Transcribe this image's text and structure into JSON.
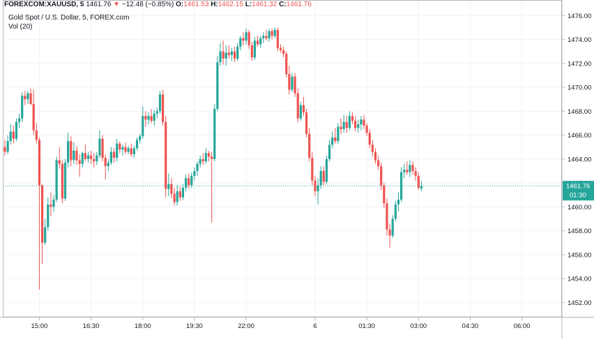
{
  "header": {
    "symbol": "FOREXCOM:XAUUSD, 5",
    "last": "1461.76",
    "change": "−12.48 (−0.85%)",
    "o_label": "O:",
    "o_value": "1461.53",
    "h_label": "H:",
    "h_value": "1462.15",
    "l_label": "L:",
    "l_value": "1461.32",
    "c_label": "C:",
    "c_value": "1461.76",
    "subtitle": "Gold Spot / U.S. Dollar, 5, FOREX.com",
    "volume_label": "Vol (20)"
  },
  "price_tag": {
    "value": "1461.76",
    "countdown": "01:30"
  },
  "colors": {
    "up": "#26a69a",
    "down": "#ef5350",
    "grid": "#f0f3fa",
    "axis": "#b2b5be",
    "tag": "#26a69a"
  },
  "chart_data": {
    "type": "candlestick",
    "ylim": [
      1450.8,
      1477.3
    ],
    "y_ticks": [
      1452,
      1454,
      1456,
      1458,
      1460,
      1462,
      1464,
      1466,
      1468,
      1470,
      1472,
      1474,
      1476
    ],
    "x_ticks": [
      {
        "label": "15:00",
        "index": 12
      },
      {
        "label": "16:30",
        "index": 30
      },
      {
        "label": "18:00",
        "index": 48
      },
      {
        "label": "19:30",
        "index": 66
      },
      {
        "label": "22:00",
        "index": 84
      },
      {
        "label": "6",
        "index": 108
      },
      {
        "label": "01:30",
        "index": 126
      },
      {
        "label": "03:00",
        "index": 144
      },
      {
        "label": "04:30",
        "index": 162
      },
      {
        "label": "06:00",
        "index": 180
      }
    ],
    "current_price": 1461.76,
    "candles": [
      {
        "o": 1465.0,
        "h": 1465.6,
        "l": 1464.3,
        "c": 1464.6
      },
      {
        "o": 1464.6,
        "h": 1466.0,
        "l": 1464.4,
        "c": 1465.5
      },
      {
        "o": 1465.5,
        "h": 1466.9,
        "l": 1465.2,
        "c": 1466.3
      },
      {
        "o": 1466.3,
        "h": 1466.8,
        "l": 1465.3,
        "c": 1465.7
      },
      {
        "o": 1465.7,
        "h": 1467.4,
        "l": 1465.5,
        "c": 1467.1
      },
      {
        "o": 1467.1,
        "h": 1467.8,
        "l": 1466.6,
        "c": 1467.4
      },
      {
        "o": 1467.4,
        "h": 1469.6,
        "l": 1467.1,
        "c": 1469.3
      },
      {
        "o": 1469.3,
        "h": 1469.7,
        "l": 1468.5,
        "c": 1469.0
      },
      {
        "o": 1469.0,
        "h": 1469.7,
        "l": 1468.6,
        "c": 1469.5
      },
      {
        "o": 1469.5,
        "h": 1469.9,
        "l": 1468.5,
        "c": 1468.6
      },
      {
        "o": 1468.6,
        "h": 1469.8,
        "l": 1466.0,
        "c": 1466.4
      },
      {
        "o": 1466.4,
        "h": 1467.0,
        "l": 1465.3,
        "c": 1465.6
      },
      {
        "o": 1465.6,
        "h": 1465.8,
        "l": 1453.1,
        "c": 1461.8
      },
      {
        "o": 1461.8,
        "h": 1461.9,
        "l": 1455.2,
        "c": 1457.0
      },
      {
        "o": 1457.0,
        "h": 1459.0,
        "l": 1456.8,
        "c": 1458.3
      },
      {
        "o": 1458.3,
        "h": 1460.8,
        "l": 1458.0,
        "c": 1460.2
      },
      {
        "o": 1460.2,
        "h": 1461.2,
        "l": 1459.2,
        "c": 1460.0
      },
      {
        "o": 1460.0,
        "h": 1461.0,
        "l": 1459.6,
        "c": 1460.6
      },
      {
        "o": 1460.6,
        "h": 1464.2,
        "l": 1460.4,
        "c": 1463.9
      },
      {
        "o": 1463.9,
        "h": 1465.0,
        "l": 1463.2,
        "c": 1463.6
      },
      {
        "o": 1463.6,
        "h": 1463.9,
        "l": 1460.3,
        "c": 1460.7
      },
      {
        "o": 1460.7,
        "h": 1464.0,
        "l": 1460.5,
        "c": 1463.7
      },
      {
        "o": 1463.7,
        "h": 1466.2,
        "l": 1463.3,
        "c": 1465.5
      },
      {
        "o": 1465.5,
        "h": 1465.9,
        "l": 1463.4,
        "c": 1463.9
      },
      {
        "o": 1463.9,
        "h": 1465.4,
        "l": 1463.6,
        "c": 1464.7
      },
      {
        "o": 1464.7,
        "h": 1465.1,
        "l": 1463.5,
        "c": 1463.9
      },
      {
        "o": 1463.9,
        "h": 1464.4,
        "l": 1462.5,
        "c": 1463.6
      },
      {
        "o": 1463.6,
        "h": 1464.6,
        "l": 1463.3,
        "c": 1464.5
      },
      {
        "o": 1464.5,
        "h": 1465.2,
        "l": 1463.8,
        "c": 1464.0
      },
      {
        "o": 1464.0,
        "h": 1464.6,
        "l": 1463.7,
        "c": 1464.3
      },
      {
        "o": 1464.3,
        "h": 1464.7,
        "l": 1463.6,
        "c": 1464.0
      },
      {
        "o": 1464.0,
        "h": 1464.5,
        "l": 1463.3,
        "c": 1463.8
      },
      {
        "o": 1463.8,
        "h": 1464.6,
        "l": 1463.5,
        "c": 1464.3
      },
      {
        "o": 1464.3,
        "h": 1466.4,
        "l": 1464.1,
        "c": 1465.7
      },
      {
        "o": 1465.7,
        "h": 1466.0,
        "l": 1463.8,
        "c": 1464.1
      },
      {
        "o": 1464.1,
        "h": 1464.4,
        "l": 1462.3,
        "c": 1463.4
      },
      {
        "o": 1463.4,
        "h": 1464.0,
        "l": 1463.0,
        "c": 1463.7
      },
      {
        "o": 1463.7,
        "h": 1465.0,
        "l": 1463.5,
        "c": 1464.6
      },
      {
        "o": 1464.6,
        "h": 1464.9,
        "l": 1463.7,
        "c": 1464.1
      },
      {
        "o": 1464.1,
        "h": 1465.7,
        "l": 1463.8,
        "c": 1465.3
      },
      {
        "o": 1465.3,
        "h": 1465.5,
        "l": 1464.5,
        "c": 1464.8
      },
      {
        "o": 1464.8,
        "h": 1465.2,
        "l": 1464.3,
        "c": 1465.0
      },
      {
        "o": 1465.0,
        "h": 1465.4,
        "l": 1464.4,
        "c": 1464.6
      },
      {
        "o": 1464.6,
        "h": 1465.1,
        "l": 1464.4,
        "c": 1464.9
      },
      {
        "o": 1464.9,
        "h": 1465.3,
        "l": 1464.2,
        "c": 1464.4
      },
      {
        "o": 1464.4,
        "h": 1465.1,
        "l": 1464.1,
        "c": 1464.9
      },
      {
        "o": 1464.9,
        "h": 1465.8,
        "l": 1464.7,
        "c": 1465.6
      },
      {
        "o": 1465.6,
        "h": 1466.1,
        "l": 1465.3,
        "c": 1465.9
      },
      {
        "o": 1465.9,
        "h": 1468.4,
        "l": 1465.7,
        "c": 1467.6
      },
      {
        "o": 1467.6,
        "h": 1468.0,
        "l": 1466.7,
        "c": 1467.3
      },
      {
        "o": 1467.3,
        "h": 1467.9,
        "l": 1466.9,
        "c": 1467.6
      },
      {
        "o": 1467.6,
        "h": 1468.2,
        "l": 1467.0,
        "c": 1467.2
      },
      {
        "o": 1467.2,
        "h": 1468.1,
        "l": 1466.8,
        "c": 1467.8
      },
      {
        "o": 1467.8,
        "h": 1468.3,
        "l": 1467.4,
        "c": 1468.0
      },
      {
        "o": 1468.0,
        "h": 1469.7,
        "l": 1467.8,
        "c": 1469.4
      },
      {
        "o": 1469.4,
        "h": 1469.8,
        "l": 1466.8,
        "c": 1467.1
      },
      {
        "o": 1467.1,
        "h": 1467.6,
        "l": 1460.8,
        "c": 1461.5
      },
      {
        "o": 1461.5,
        "h": 1462.8,
        "l": 1460.9,
        "c": 1461.9
      },
      {
        "o": 1461.9,
        "h": 1462.4,
        "l": 1460.7,
        "c": 1461.1
      },
      {
        "o": 1461.1,
        "h": 1461.6,
        "l": 1460.1,
        "c": 1460.4
      },
      {
        "o": 1460.4,
        "h": 1461.8,
        "l": 1460.1,
        "c": 1461.3
      },
      {
        "o": 1461.3,
        "h": 1461.7,
        "l": 1460.5,
        "c": 1460.8
      },
      {
        "o": 1460.8,
        "h": 1461.9,
        "l": 1460.6,
        "c": 1461.6
      },
      {
        "o": 1461.6,
        "h": 1462.7,
        "l": 1461.3,
        "c": 1462.4
      },
      {
        "o": 1462.4,
        "h": 1462.8,
        "l": 1461.5,
        "c": 1461.8
      },
      {
        "o": 1461.8,
        "h": 1462.9,
        "l": 1461.6,
        "c": 1462.6
      },
      {
        "o": 1462.6,
        "h": 1463.3,
        "l": 1462.2,
        "c": 1463.0
      },
      {
        "o": 1463.0,
        "h": 1463.8,
        "l": 1462.6,
        "c": 1463.6
      },
      {
        "o": 1463.6,
        "h": 1464.3,
        "l": 1463.3,
        "c": 1464.0
      },
      {
        "o": 1464.0,
        "h": 1464.5,
        "l": 1463.5,
        "c": 1463.8
      },
      {
        "o": 1463.8,
        "h": 1464.9,
        "l": 1463.6,
        "c": 1464.5
      },
      {
        "o": 1464.5,
        "h": 1464.7,
        "l": 1463.8,
        "c": 1464.2
      },
      {
        "o": 1464.2,
        "h": 1464.6,
        "l": 1458.7,
        "c": 1464.0
      },
      {
        "o": 1464.0,
        "h": 1468.6,
        "l": 1463.8,
        "c": 1468.2
      },
      {
        "o": 1468.2,
        "h": 1472.6,
        "l": 1468.0,
        "c": 1472.1
      },
      {
        "o": 1472.1,
        "h": 1473.7,
        "l": 1471.8,
        "c": 1473.0
      },
      {
        "o": 1473.0,
        "h": 1473.9,
        "l": 1471.9,
        "c": 1472.4
      },
      {
        "o": 1472.4,
        "h": 1473.5,
        "l": 1471.8,
        "c": 1472.9
      },
      {
        "o": 1472.9,
        "h": 1473.5,
        "l": 1472.4,
        "c": 1472.7
      },
      {
        "o": 1472.7,
        "h": 1473.3,
        "l": 1472.2,
        "c": 1473.0
      },
      {
        "o": 1473.0,
        "h": 1473.4,
        "l": 1472.1,
        "c": 1472.4
      },
      {
        "o": 1472.4,
        "h": 1473.7,
        "l": 1472.2,
        "c": 1473.4
      },
      {
        "o": 1473.4,
        "h": 1474.3,
        "l": 1473.1,
        "c": 1474.1
      },
      {
        "o": 1474.1,
        "h": 1474.6,
        "l": 1473.5,
        "c": 1473.9
      },
      {
        "o": 1473.9,
        "h": 1474.9,
        "l": 1473.6,
        "c": 1474.6
      },
      {
        "o": 1474.6,
        "h": 1474.8,
        "l": 1473.2,
        "c": 1473.5
      },
      {
        "o": 1473.5,
        "h": 1473.8,
        "l": 1472.2,
        "c": 1472.5
      },
      {
        "o": 1472.5,
        "h": 1474.2,
        "l": 1472.3,
        "c": 1473.9
      },
      {
        "o": 1473.9,
        "h": 1474.3,
        "l": 1473.4,
        "c": 1473.6
      },
      {
        "o": 1473.6,
        "h": 1474.3,
        "l": 1473.3,
        "c": 1474.1
      },
      {
        "o": 1474.1,
        "h": 1474.6,
        "l": 1473.7,
        "c": 1474.3
      },
      {
        "o": 1474.3,
        "h": 1474.8,
        "l": 1473.9,
        "c": 1474.1
      },
      {
        "o": 1474.1,
        "h": 1474.9,
        "l": 1473.8,
        "c": 1474.7
      },
      {
        "o": 1474.7,
        "h": 1474.9,
        "l": 1474.0,
        "c": 1474.3
      },
      {
        "o": 1474.3,
        "h": 1475.0,
        "l": 1474.1,
        "c": 1474.8
      },
      {
        "o": 1474.8,
        "h": 1475.0,
        "l": 1473.0,
        "c": 1473.3
      },
      {
        "o": 1473.3,
        "h": 1473.6,
        "l": 1472.9,
        "c": 1473.1
      },
      {
        "o": 1473.1,
        "h": 1473.4,
        "l": 1472.5,
        "c": 1472.8
      },
      {
        "o": 1472.8,
        "h": 1473.0,
        "l": 1470.8,
        "c": 1471.1
      },
      {
        "o": 1471.1,
        "h": 1471.8,
        "l": 1469.4,
        "c": 1469.8
      },
      {
        "o": 1469.8,
        "h": 1471.2,
        "l": 1469.6,
        "c": 1470.9
      },
      {
        "o": 1470.9,
        "h": 1471.2,
        "l": 1469.2,
        "c": 1469.5
      },
      {
        "o": 1469.5,
        "h": 1469.9,
        "l": 1467.1,
        "c": 1467.4
      },
      {
        "o": 1467.4,
        "h": 1468.8,
        "l": 1467.2,
        "c": 1468.5
      },
      {
        "o": 1468.5,
        "h": 1469.2,
        "l": 1467.6,
        "c": 1467.9
      },
      {
        "o": 1467.9,
        "h": 1468.2,
        "l": 1465.8,
        "c": 1466.1
      },
      {
        "o": 1466.1,
        "h": 1466.6,
        "l": 1463.8,
        "c": 1464.1
      },
      {
        "o": 1464.1,
        "h": 1464.6,
        "l": 1461.8,
        "c": 1462.2
      },
      {
        "o": 1462.2,
        "h": 1462.6,
        "l": 1460.9,
        "c": 1461.3
      },
      {
        "o": 1461.3,
        "h": 1462.4,
        "l": 1460.2,
        "c": 1461.8
      },
      {
        "o": 1461.8,
        "h": 1463.4,
        "l": 1461.5,
        "c": 1463.0
      },
      {
        "o": 1463.0,
        "h": 1463.4,
        "l": 1461.8,
        "c": 1462.1
      },
      {
        "o": 1462.1,
        "h": 1464.3,
        "l": 1461.9,
        "c": 1464.0
      },
      {
        "o": 1464.0,
        "h": 1465.6,
        "l": 1463.8,
        "c": 1465.2
      },
      {
        "o": 1465.2,
        "h": 1466.3,
        "l": 1464.9,
        "c": 1465.8
      },
      {
        "o": 1465.8,
        "h": 1466.6,
        "l": 1465.3,
        "c": 1465.5
      },
      {
        "o": 1465.5,
        "h": 1467.0,
        "l": 1465.3,
        "c": 1466.7
      },
      {
        "o": 1466.7,
        "h": 1467.4,
        "l": 1466.1,
        "c": 1466.5
      },
      {
        "o": 1466.5,
        "h": 1467.7,
        "l": 1466.2,
        "c": 1467.1
      },
      {
        "o": 1467.1,
        "h": 1467.6,
        "l": 1466.2,
        "c": 1466.6
      },
      {
        "o": 1466.6,
        "h": 1468.0,
        "l": 1466.4,
        "c": 1467.6
      },
      {
        "o": 1467.6,
        "h": 1467.9,
        "l": 1466.9,
        "c": 1467.2
      },
      {
        "o": 1467.2,
        "h": 1467.6,
        "l": 1466.3,
        "c": 1466.6
      },
      {
        "o": 1466.6,
        "h": 1467.3,
        "l": 1466.2,
        "c": 1466.9
      },
      {
        "o": 1466.9,
        "h": 1467.6,
        "l": 1466.4,
        "c": 1467.3
      },
      {
        "o": 1467.3,
        "h": 1467.7,
        "l": 1466.5,
        "c": 1466.8
      },
      {
        "o": 1466.8,
        "h": 1467.0,
        "l": 1465.9,
        "c": 1466.2
      },
      {
        "o": 1466.2,
        "h": 1466.5,
        "l": 1464.9,
        "c": 1465.2
      },
      {
        "o": 1465.2,
        "h": 1465.6,
        "l": 1464.2,
        "c": 1464.6
      },
      {
        "o": 1464.6,
        "h": 1464.9,
        "l": 1463.6,
        "c": 1463.9
      },
      {
        "o": 1463.9,
        "h": 1464.3,
        "l": 1463.1,
        "c": 1463.4
      },
      {
        "o": 1463.4,
        "h": 1463.7,
        "l": 1461.4,
        "c": 1461.8
      },
      {
        "o": 1461.8,
        "h": 1462.0,
        "l": 1459.9,
        "c": 1460.3
      },
      {
        "o": 1460.3,
        "h": 1460.7,
        "l": 1457.6,
        "c": 1458.1
      },
      {
        "o": 1458.1,
        "h": 1458.6,
        "l": 1456.6,
        "c": 1457.6
      },
      {
        "o": 1457.6,
        "h": 1459.3,
        "l": 1457.4,
        "c": 1459.0
      },
      {
        "o": 1459.0,
        "h": 1460.5,
        "l": 1458.8,
        "c": 1460.2
      },
      {
        "o": 1460.2,
        "h": 1461.2,
        "l": 1459.6,
        "c": 1460.6
      },
      {
        "o": 1460.6,
        "h": 1463.3,
        "l": 1460.4,
        "c": 1462.9
      },
      {
        "o": 1462.9,
        "h": 1463.6,
        "l": 1462.4,
        "c": 1463.1
      },
      {
        "o": 1463.1,
        "h": 1463.8,
        "l": 1462.7,
        "c": 1462.9
      },
      {
        "o": 1462.9,
        "h": 1463.9,
        "l": 1462.5,
        "c": 1463.5
      },
      {
        "o": 1463.5,
        "h": 1463.8,
        "l": 1462.7,
        "c": 1463.0
      },
      {
        "o": 1463.0,
        "h": 1463.3,
        "l": 1462.2,
        "c": 1462.6
      },
      {
        "o": 1462.6,
        "h": 1462.9,
        "l": 1461.4,
        "c": 1461.6
      },
      {
        "o": 1461.53,
        "h": 1462.15,
        "l": 1461.32,
        "c": 1461.76
      }
    ]
  }
}
